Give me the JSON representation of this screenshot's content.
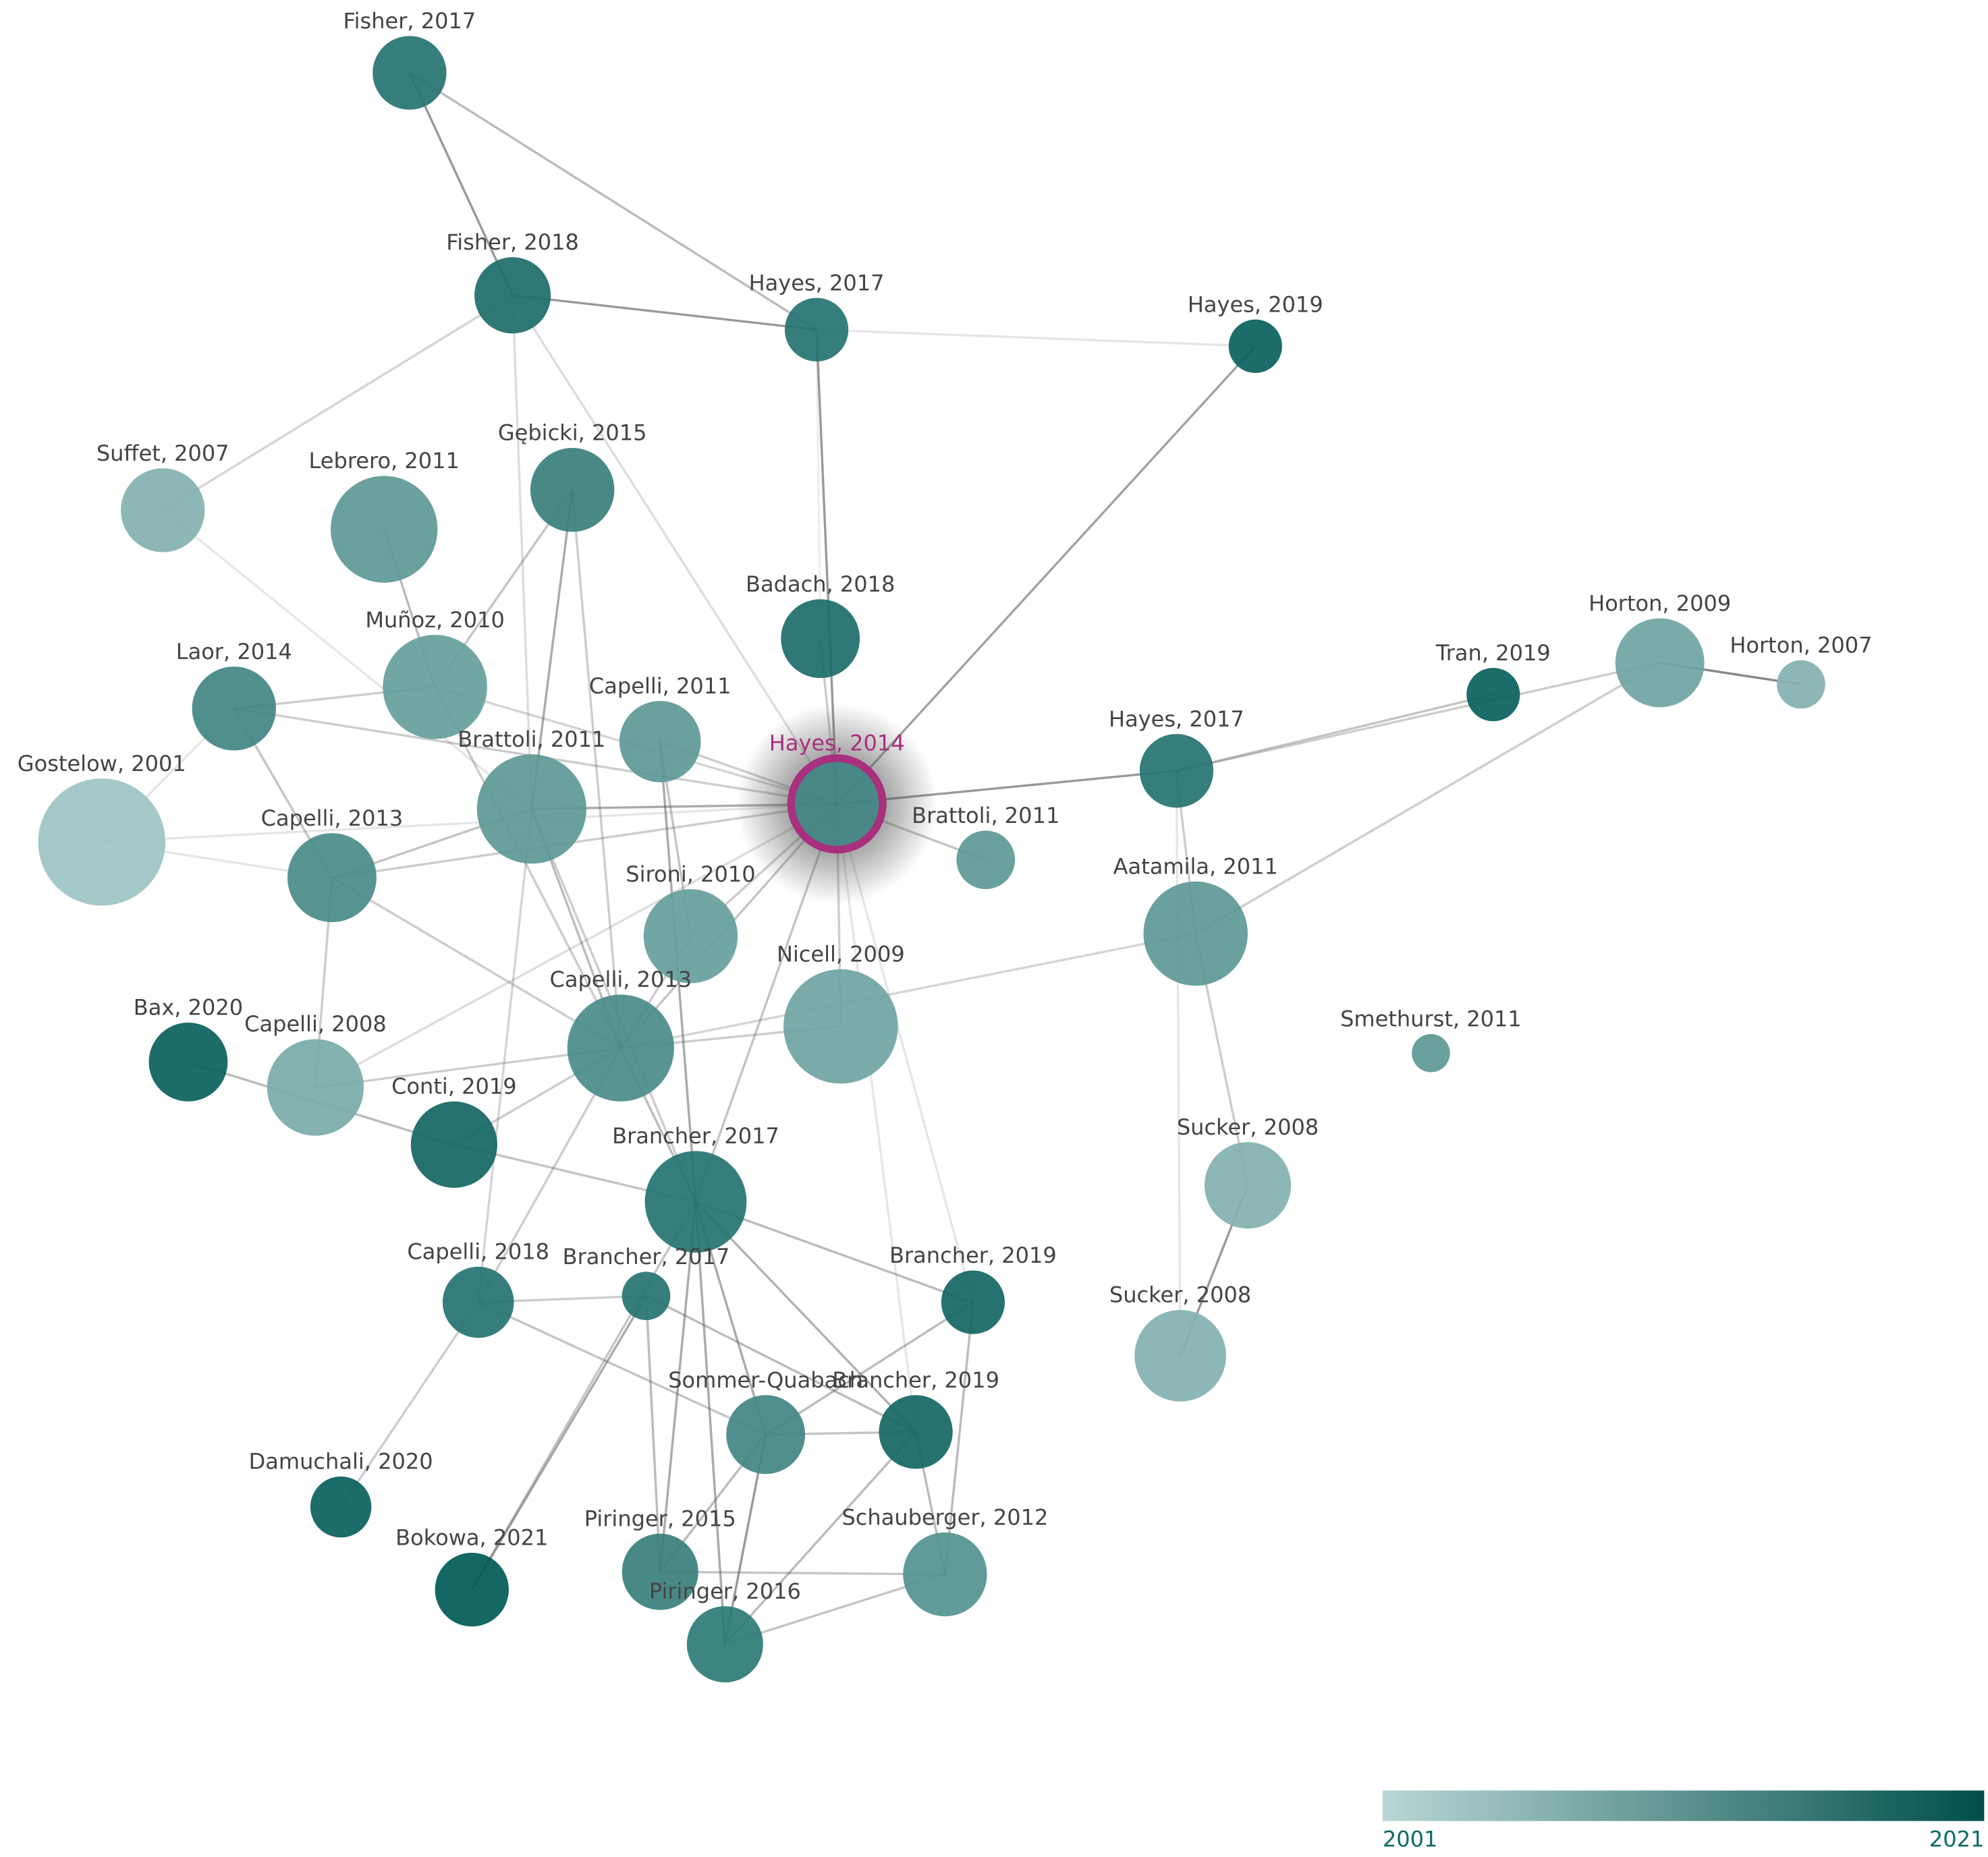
{
  "nodes": [
    {
      "label": "Fisher, 2017"
    },
    {
      "label": "Fisher, 2018"
    },
    {
      "label": "Hayes, 2017"
    },
    {
      "label": "Hayes, 2019"
    },
    {
      "label": "Suffet, 2007"
    },
    {
      "label": "Lebrero, 2011"
    },
    {
      "label": "Gębicki, 2015"
    },
    {
      "label": "Badach, 2018"
    },
    {
      "label": "Laor, 2014"
    },
    {
      "label": "Muñoz, 2010"
    },
    {
      "label": "Capelli, 2011"
    },
    {
      "label": "Hayes, 2014"
    },
    {
      "label": "Tran, 2019"
    },
    {
      "label": "Horton, 2009"
    },
    {
      "label": "Horton, 2007"
    },
    {
      "label": "Hayes, 2017"
    },
    {
      "label": "Gostelow, 2001"
    },
    {
      "label": "Brattoli, 2011"
    },
    {
      "label": "Brattoli, 2011"
    },
    {
      "label": "Capelli, 2013"
    },
    {
      "label": "Sironi, 2010"
    },
    {
      "label": "Aatamila, 2011"
    },
    {
      "label": "Nicell, 2009"
    },
    {
      "label": "Smethurst, 2011"
    },
    {
      "label": "Bax, 2020"
    },
    {
      "label": "Capelli, 2008"
    },
    {
      "label": "Capelli, 2013"
    },
    {
      "label": "Conti, 2019"
    },
    {
      "label": "Sucker, 2008"
    },
    {
      "label": "Brancher, 2017"
    },
    {
      "label": "Capelli, 2018"
    },
    {
      "label": "Brancher, 2017"
    },
    {
      "label": "Brancher, 2019"
    },
    {
      "label": "Sucker, 2008"
    },
    {
      "label": "Sommer-Quabach"
    },
    {
      "label": "Brancher, 2019"
    },
    {
      "label": "Damuchali, 2020"
    },
    {
      "label": "Piringer, 2015"
    },
    {
      "label": "Schauberger, 2012"
    },
    {
      "label": "Bokowa, 2021"
    },
    {
      "label": "Piringer, 2016"
    }
  ],
  "colorbar": {
    "min": 2001,
    "max": 2021
  }
}
